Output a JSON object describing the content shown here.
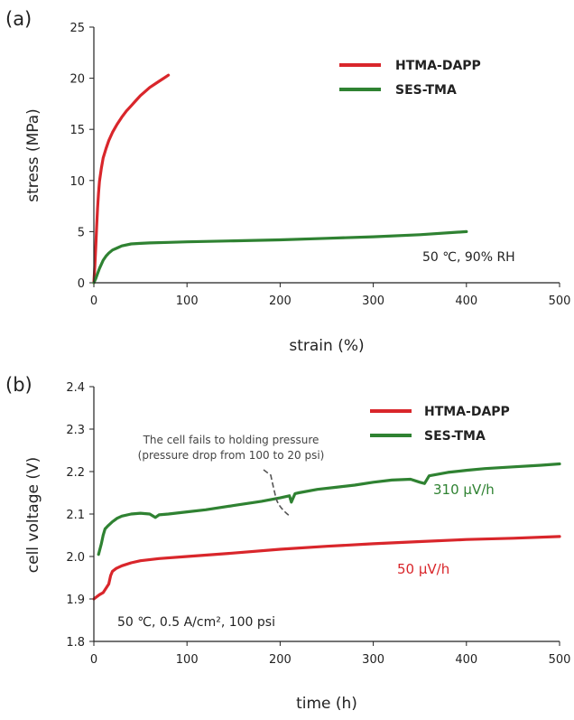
{
  "colors": {
    "red": "#d9262b",
    "green": "#2f8232",
    "axis": "#222222"
  },
  "chart_data": [
    {
      "panel_label": "(a)",
      "type": "line",
      "xlabel": "strain (%)",
      "ylabel": "stress (MPa)",
      "xlim": [
        0,
        500
      ],
      "ylim": [
        0,
        25
      ],
      "xticks": [
        0,
        100,
        200,
        300,
        400,
        500
      ],
      "yticks": [
        0,
        5,
        10,
        15,
        20,
        25
      ],
      "legend_placement": "top-right",
      "annotations": [
        {
          "text": "50 ℃, 90% RH"
        }
      ],
      "series": [
        {
          "name": "HTMA-DAPP",
          "color": "red",
          "x": [
            0,
            1,
            2,
            3,
            4,
            5,
            6,
            8,
            10,
            13,
            16,
            20,
            25,
            30,
            35,
            40,
            45,
            50,
            55,
            60,
            65,
            70,
            75,
            80
          ],
          "y": [
            0,
            1.5,
            3.5,
            5.5,
            7.3,
            8.8,
            9.9,
            11.2,
            12.2,
            13.1,
            13.9,
            14.7,
            15.5,
            16.2,
            16.8,
            17.3,
            17.8,
            18.3,
            18.7,
            19.1,
            19.4,
            19.7,
            20.0,
            20.3
          ]
        },
        {
          "name": "SES-TMA",
          "color": "green",
          "x": [
            0,
            2,
            4,
            6,
            8,
            10,
            13,
            16,
            20,
            25,
            30,
            40,
            50,
            60,
            80,
            100,
            150,
            200,
            250,
            300,
            350,
            400
          ],
          "y": [
            0,
            0.4,
            0.9,
            1.4,
            1.8,
            2.2,
            2.6,
            2.9,
            3.2,
            3.4,
            3.6,
            3.8,
            3.85,
            3.9,
            3.95,
            4.0,
            4.1,
            4.2,
            4.35,
            4.5,
            4.7,
            5.0
          ]
        }
      ]
    },
    {
      "panel_label": "(b)",
      "type": "line",
      "xlabel": "time (h)",
      "ylabel": "cell voltage (V)",
      "xlim": [
        0,
        500
      ],
      "ylim": [
        1.8,
        2.4
      ],
      "xticks": [
        0,
        100,
        200,
        300,
        400,
        500
      ],
      "yticks": [
        1.8,
        1.9,
        2.0,
        2.1,
        2.2,
        2.3,
        2.4
      ],
      "legend_placement": "top-right",
      "annotations": [
        {
          "text": "The cell fails to holding pressure"
        },
        {
          "text": "(pressure drop from 100 to 20 psi)"
        },
        {
          "text": "50 ℃, 0.5 A/cm², 100 psi"
        },
        {
          "text": "310 µV/h",
          "color": "green"
        },
        {
          "text": "50 µV/h",
          "color": "red"
        }
      ],
      "series": [
        {
          "name": "HTMA-DAPP",
          "color": "red",
          "x": [
            0,
            3,
            6,
            10,
            13,
            16,
            18,
            20,
            24,
            30,
            40,
            50,
            70,
            100,
            150,
            200,
            250,
            300,
            350,
            400,
            450,
            500
          ],
          "y": [
            1.9,
            1.905,
            1.91,
            1.915,
            1.925,
            1.935,
            1.955,
            1.965,
            1.972,
            1.978,
            1.985,
            1.99,
            1.995,
            2.0,
            2.008,
            2.017,
            2.024,
            2.03,
            2.035,
            2.04,
            2.043,
            2.047
          ]
        },
        {
          "name": "SES-TMA",
          "color": "green",
          "x": [
            5,
            8,
            10,
            12,
            15,
            20,
            25,
            30,
            40,
            50,
            60,
            66,
            70,
            80,
            100,
            120,
            150,
            180,
            200,
            210,
            212,
            216,
            220,
            240,
            260,
            280,
            300,
            320,
            340,
            350,
            355,
            360,
            380,
            400,
            420,
            450,
            480,
            500
          ],
          "y": [
            2.005,
            2.03,
            2.05,
            2.065,
            2.072,
            2.082,
            2.09,
            2.095,
            2.1,
            2.102,
            2.1,
            2.092,
            2.098,
            2.1,
            2.105,
            2.11,
            2.12,
            2.13,
            2.138,
            2.143,
            2.128,
            2.148,
            2.15,
            2.158,
            2.163,
            2.168,
            2.175,
            2.18,
            2.182,
            2.175,
            2.172,
            2.19,
            2.198,
            2.203,
            2.207,
            2.211,
            2.215,
            2.218
          ]
        }
      ]
    }
  ]
}
